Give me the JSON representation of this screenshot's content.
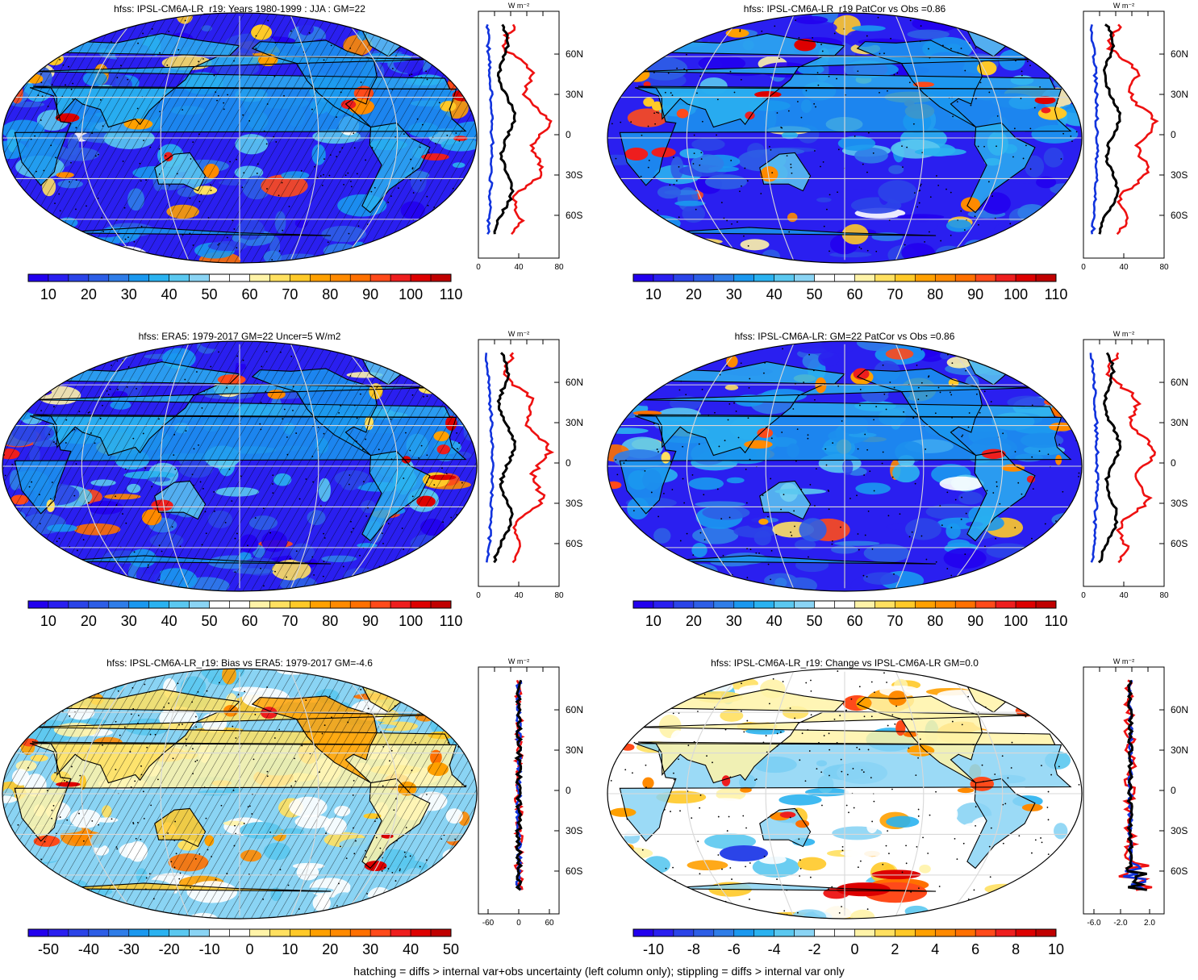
{
  "panels": [
    {
      "title": "hfss: IPSL-CM6A-LR_r19: Years 1980-1999 : JJA : GM=22",
      "scale": "abs",
      "hatch": true
    },
    {
      "title": "hfss: IPSL-CM6A-LR_r19 PatCor vs Obs =0.86",
      "scale": "abs",
      "hatch": false
    },
    {
      "title": "hfss: ERA5: 1979-2017 GM=22 Uncer=5 W/m2",
      "scale": "abs",
      "hatch": true
    },
    {
      "title": "hfss: IPSL-CM6A-LR: GM=22 PatCor vs Obs =0.86",
      "scale": "abs",
      "hatch": false
    },
    {
      "title": "hfss: IPSL-CM6A-LR_r19: Bias vs ERA5: 1979-2017 GM=-4.6",
      "scale": "bias",
      "hatch": true
    },
    {
      "title": "hfss: IPSL-CM6A-LR_r19: Change vs IPSL-CM6A-LR GM=0.0",
      "scale": "change",
      "hatch": false
    }
  ],
  "zonal": {
    "unit_label": "W m⁻²",
    "lat_labels": [
      "60N",
      "30N",
      "0",
      "30S",
      "60S"
    ],
    "x_ticks_abs": [
      "0",
      "40",
      "80"
    ],
    "x_ticks_bias": [
      "-60",
      "0",
      "60"
    ],
    "x_ticks_change": [
      "-6.0",
      "-2.0",
      "2.0"
    ],
    "line_colors": {
      "model": "#000000",
      "max": "#ee1111",
      "min": "#1133dd"
    }
  },
  "colorbars": {
    "abs": {
      "labels": [
        "10",
        "20",
        "30",
        "40",
        "50",
        "60",
        "70",
        "80",
        "90",
        "100",
        "110"
      ],
      "colors": [
        "#2200ee",
        "#2a1ff0",
        "#2b44e8",
        "#2d5ee6",
        "#2f7de8",
        "#1a98ef",
        "#2ab2f0",
        "#5ac8f0",
        "#8ad4f4",
        "#ffffff",
        "#ffffff",
        "#fff3a8",
        "#ffe060",
        "#ffc928",
        "#ffa000",
        "#ff8a00",
        "#ff7000",
        "#ff4a1a",
        "#ee1e1e",
        "#dd0000",
        "#c00000"
      ]
    },
    "bias": {
      "labels": [
        "-50",
        "-40",
        "-30",
        "-20",
        "-10",
        "0",
        "10",
        "20",
        "30",
        "40",
        "50"
      ],
      "colors": [
        "#2200ee",
        "#2a1ff0",
        "#2b44e8",
        "#2d5ee6",
        "#2f7de8",
        "#1a98ef",
        "#2ab2f0",
        "#5ac8f0",
        "#8ad4f4",
        "#ffffff",
        "#ffffff",
        "#fff3a8",
        "#ffe060",
        "#ffc928",
        "#ffa000",
        "#ff8a00",
        "#ff7000",
        "#ff4a1a",
        "#ee1e1e",
        "#dd0000",
        "#c00000"
      ]
    },
    "change": {
      "labels": [
        "-10",
        "-8",
        "-6",
        "-4",
        "-2",
        "0",
        "2",
        "4",
        "6",
        "8",
        "10"
      ],
      "colors": [
        "#2200ee",
        "#2a1ff0",
        "#2b44e8",
        "#2d5ee6",
        "#2f7de8",
        "#1a98ef",
        "#2ab2f0",
        "#5ac8f0",
        "#8ad4f4",
        "#ffffff",
        "#ffffff",
        "#fff3a8",
        "#ffe060",
        "#ffc928",
        "#ffa000",
        "#ff8a00",
        "#ff7000",
        "#ff4a1a",
        "#ee1e1e",
        "#dd0000",
        "#c00000"
      ]
    }
  },
  "footer": "hatching = diffs > internal var+obs uncertainty (left column only); stippling = diffs > internal var only"
}
